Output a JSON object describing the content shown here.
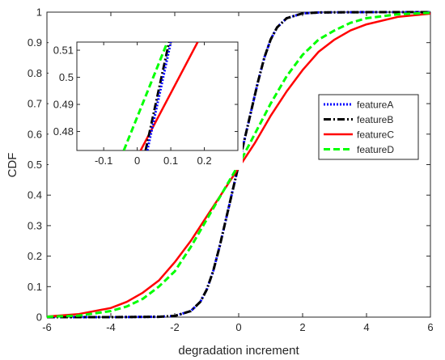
{
  "chart_data": {
    "type": "line",
    "xlabel": "degradation increment",
    "ylabel": "CDF",
    "xlim": [
      -6,
      6
    ],
    "ylim": [
      0,
      1
    ],
    "xticks": [
      "-6",
      "-4",
      "-2",
      "0",
      "2",
      "4",
      "6"
    ],
    "yticks": [
      "0",
      "0.1",
      "0.2",
      "0.3",
      "0.4",
      "0.5",
      "0.6",
      "0.7",
      "0.8",
      "0.9",
      "1"
    ],
    "grid": false,
    "legend_position": "right",
    "series": [
      {
        "name": "featureA",
        "color": "#0000ff",
        "dash": "dotted",
        "x": [
          -6,
          -4,
          -2.5,
          -2,
          -1.5,
          -1.2,
          -1,
          -0.8,
          -0.6,
          -0.4,
          -0.2,
          0,
          0.2,
          0.4,
          0.6,
          0.8,
          1,
          1.2,
          1.5,
          2,
          2.5,
          4,
          6
        ],
        "y": [
          0,
          0,
          0.001,
          0.004,
          0.02,
          0.05,
          0.09,
          0.15,
          0.23,
          0.32,
          0.41,
          0.5,
          0.59,
          0.68,
          0.77,
          0.85,
          0.91,
          0.95,
          0.98,
          0.996,
          0.999,
          1,
          1
        ]
      },
      {
        "name": "featureB",
        "color": "#000000",
        "dash": "dashdot",
        "x": [
          -6,
          -4,
          -2.5,
          -2,
          -1.5,
          -1.2,
          -1,
          -0.8,
          -0.6,
          -0.4,
          -0.2,
          0,
          0.2,
          0.4,
          0.6,
          0.8,
          1,
          1.2,
          1.5,
          2,
          2.5,
          4,
          6
        ],
        "y": [
          0,
          0,
          0.001,
          0.004,
          0.02,
          0.05,
          0.09,
          0.15,
          0.23,
          0.32,
          0.41,
          0.5,
          0.59,
          0.68,
          0.77,
          0.85,
          0.91,
          0.95,
          0.98,
          0.996,
          0.999,
          1,
          1
        ]
      },
      {
        "name": "featureC",
        "color": "#ff0000",
        "dash": "solid",
        "x": [
          -6,
          -5,
          -4,
          -3.5,
          -3,
          -2.5,
          -2,
          -1.5,
          -1,
          -0.5,
          0,
          0.5,
          1,
          1.5,
          2,
          2.5,
          3,
          3.5,
          4,
          5,
          6
        ],
        "y": [
          0.002,
          0.01,
          0.03,
          0.05,
          0.08,
          0.12,
          0.18,
          0.25,
          0.33,
          0.41,
          0.49,
          0.57,
          0.66,
          0.74,
          0.81,
          0.87,
          0.91,
          0.94,
          0.96,
          0.985,
          0.995
        ]
      },
      {
        "name": "featureD",
        "color": "#00ff00",
        "dash": "dashed",
        "x": [
          -6,
          -5,
          -4,
          -3.5,
          -3,
          -2.5,
          -2,
          -1.5,
          -1,
          -0.5,
          0,
          0.5,
          1,
          1.5,
          2,
          2.5,
          3,
          3.5,
          4,
          5,
          6
        ],
        "y": [
          0.001,
          0.005,
          0.02,
          0.035,
          0.06,
          0.1,
          0.15,
          0.23,
          0.32,
          0.41,
          0.5,
          0.6,
          0.7,
          0.79,
          0.86,
          0.91,
          0.94,
          0.965,
          0.98,
          0.993,
          0.998
        ]
      }
    ],
    "inset": {
      "xlim": [
        -0.18,
        0.3
      ],
      "ylim": [
        0.473,
        0.513
      ],
      "xticks": [
        "-0.1",
        "0",
        "0.1",
        "0.2"
      ],
      "yticks": [
        "0.48",
        "0.49",
        "0.5",
        "0.51"
      ],
      "series": [
        {
          "name": "featureA",
          "x": [
            0.03,
            0.1
          ],
          "y": [
            0.473,
            0.513
          ]
        },
        {
          "name": "featureB",
          "x": [
            0.025,
            0.095
          ],
          "y": [
            0.473,
            0.513
          ]
        },
        {
          "name": "featureC",
          "x": [
            0.01,
            0.18
          ],
          "y": [
            0.473,
            0.513
          ]
        },
        {
          "name": "featureD",
          "x": [
            -0.04,
            0.09
          ],
          "y": [
            0.473,
            0.513
          ]
        }
      ]
    }
  }
}
